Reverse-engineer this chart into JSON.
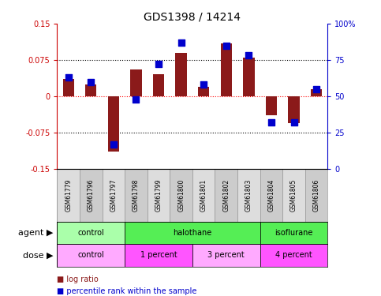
{
  "title": "GDS1398 / 14214",
  "samples": [
    "GSM61779",
    "GSM61796",
    "GSM61797",
    "GSM61798",
    "GSM61799",
    "GSM61800",
    "GSM61801",
    "GSM61802",
    "GSM61803",
    "GSM61804",
    "GSM61805",
    "GSM61806"
  ],
  "log_ratio": [
    0.035,
    0.025,
    -0.115,
    0.055,
    0.045,
    0.09,
    0.02,
    0.11,
    0.08,
    -0.04,
    -0.055,
    0.015
  ],
  "percentile": [
    63,
    60,
    17,
    48,
    72,
    87,
    58,
    85,
    78,
    32,
    32,
    55
  ],
  "bar_color": "#8B1A1A",
  "dot_color": "#0000CC",
  "ylim": [
    -0.15,
    0.15
  ],
  "yticks_left": [
    -0.15,
    -0.075,
    0,
    0.075,
    0.15
  ],
  "yticks_right": [
    0,
    25,
    50,
    75,
    100
  ],
  "hlines": [
    -0.075,
    0,
    0.075
  ],
  "agent_groups": [
    {
      "label": "control",
      "start": 0,
      "end": 3,
      "color": "#AAFFAA"
    },
    {
      "label": "halothane",
      "start": 3,
      "end": 9,
      "color": "#55EE55"
    },
    {
      "label": "isoflurane",
      "start": 9,
      "end": 12,
      "color": "#55EE55"
    }
  ],
  "dose_groups": [
    {
      "label": "control",
      "start": 0,
      "end": 3,
      "color": "#FFAAFF"
    },
    {
      "label": "1 percent",
      "start": 3,
      "end": 6,
      "color": "#FF55FF"
    },
    {
      "label": "3 percent",
      "start": 6,
      "end": 9,
      "color": "#FFAAFF"
    },
    {
      "label": "4 percent",
      "start": 9,
      "end": 12,
      "color": "#FF55FF"
    }
  ],
  "legend_log_ratio": "log ratio",
  "legend_percentile": "percentile rank within the sample",
  "agent_label": "agent",
  "dose_label": "dose",
  "bar_width": 0.5,
  "dot_size": 40,
  "background_color": "#FFFFFF",
  "right_axis_color": "#0000CC",
  "left_axis_color": "#CC0000"
}
